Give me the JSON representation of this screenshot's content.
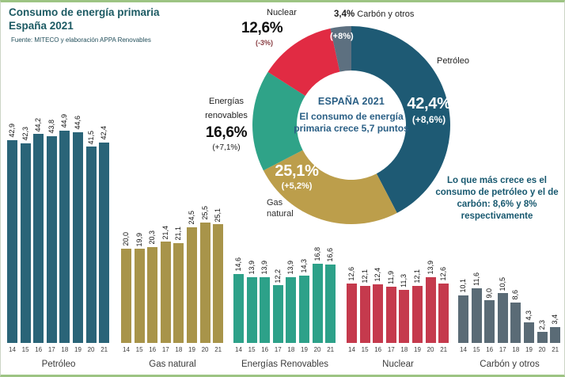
{
  "header": {
    "title": "Consumo de energía primaria\nEspaña 2021",
    "source": "Fuente: MITECO y elaboración APPA Renovables"
  },
  "chart_data": [
    {
      "type": "pie",
      "subtype": "donut",
      "center": {
        "title": "ESPAÑA 2021",
        "line1": "El consumo de energía",
        "line2": "primaria crece 5,7 puntos"
      },
      "slices": [
        {
          "name": "Petróleo",
          "pct": "42,4%",
          "delta": "(+8,6%)",
          "value": 42.4,
          "color": "#1e5a74"
        },
        {
          "name": "Gas natural",
          "pct": "25,1%",
          "delta": "(+5,2%)",
          "value": 25.1,
          "color": "#bc9e4b"
        },
        {
          "name": "Energías renovables",
          "pct": "16,6%",
          "delta": "(+7,1%)",
          "value": 16.6,
          "color": "#2fa388"
        },
        {
          "name": "Nuclear",
          "pct": "12,6%",
          "delta": "(-3%)",
          "value": 12.6,
          "color": "#e12b43"
        },
        {
          "name": "Carbón y otros",
          "pct": "3,4%",
          "delta": "(+8%)",
          "value": 3.4,
          "color": "#5d7080"
        }
      ],
      "annotation": "Lo que más crece es el consumo de petróleo y el de carbón: 8,6% y 8% respectivamente",
      "legend_position": "around",
      "grid": false
    },
    {
      "type": "bar",
      "title": "Petróleo",
      "color": "#2a6478",
      "categories": [
        "14",
        "15",
        "16",
        "17",
        "18",
        "19",
        "20",
        "21"
      ],
      "values": [
        42.9,
        42.3,
        44.2,
        43.8,
        44.9,
        44.6,
        41.5,
        42.4
      ],
      "labels": [
        "42,9",
        "42,3",
        "44,2",
        "43,8",
        "44,9",
        "44,6",
        "41,5",
        "42,4"
      ],
      "ylim": [
        0,
        50
      ],
      "grid": false
    },
    {
      "type": "bar",
      "title": "Gas natural",
      "color": "#a8944a",
      "categories": [
        "14",
        "15",
        "16",
        "17",
        "18",
        "19",
        "20",
        "21"
      ],
      "values": [
        20.0,
        19.9,
        20.3,
        21.4,
        21.1,
        24.5,
        25.5,
        25.1
      ],
      "labels": [
        "20,0",
        "19,9",
        "20,3",
        "21,4",
        "21,1",
        "24,5",
        "25,5",
        "25,1"
      ],
      "ylim": [
        0,
        50
      ],
      "grid": false
    },
    {
      "type": "bar",
      "title": "Energías Renovables",
      "color": "#2da189",
      "categories": [
        "14",
        "15",
        "16",
        "17",
        "18",
        "19",
        "20",
        "21"
      ],
      "values": [
        14.6,
        13.9,
        13.9,
        12.2,
        13.9,
        14.3,
        16.8,
        16.6
      ],
      "labels": [
        "14,6",
        "13,9",
        "13,9",
        "12,2",
        "13,9",
        "14,3",
        "16,8",
        "16,6"
      ],
      "ylim": [
        0,
        50
      ],
      "grid": false
    },
    {
      "type": "bar",
      "title": "Nuclear",
      "color": "#c53a4d",
      "categories": [
        "14",
        "15",
        "16",
        "17",
        "18",
        "19",
        "20",
        "21"
      ],
      "values": [
        12.6,
        12.1,
        12.4,
        11.9,
        11.3,
        12.1,
        13.9,
        12.6
      ],
      "labels": [
        "12,6",
        "12,1",
        "12,4",
        "11,9",
        "11,3",
        "12,1",
        "13,9",
        "12,6"
      ],
      "ylim": [
        0,
        50
      ],
      "grid": false
    },
    {
      "type": "bar",
      "title": "Carbón y otros",
      "color": "#5a6b76",
      "categories": [
        "14",
        "15",
        "16",
        "17",
        "18",
        "19",
        "20",
        "21"
      ],
      "values": [
        10.1,
        11.6,
        9.0,
        10.5,
        8.6,
        4.3,
        2.3,
        3.4
      ],
      "labels": [
        "10,1",
        "11,6",
        "9,0",
        "10,5",
        "8,6",
        "4,3",
        "2,3",
        "3,4"
      ],
      "ylim": [
        0,
        50
      ],
      "grid": false
    }
  ]
}
